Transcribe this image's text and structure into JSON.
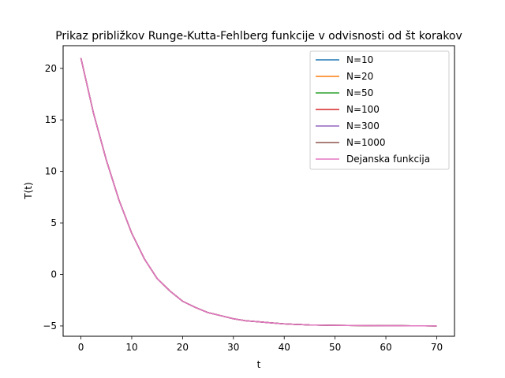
{
  "chart_data": {
    "type": "line",
    "title": "Prikaz približkov Runge-Kutta-Fehlberg funkcije v odvisnosti od št korakov",
    "xlabel": "t",
    "ylabel": "T(t)",
    "xlim": [
      -3.5,
      73.5
    ],
    "ylim": [
      -6.0,
      22.2
    ],
    "xticks": [
      0,
      10,
      20,
      30,
      40,
      50,
      60,
      70
    ],
    "yticks": [
      -5,
      0,
      5,
      10,
      15,
      20
    ],
    "grid": false,
    "legend_position": "top-right",
    "x": [
      0,
      2.5,
      5,
      7.5,
      10,
      12.5,
      15,
      17.5,
      20,
      22.5,
      25,
      27.5,
      30,
      32.5,
      35,
      37.5,
      40,
      42.5,
      45,
      47.5,
      50,
      52.5,
      55,
      57.5,
      60,
      62.5,
      65,
      67.5,
      70
    ],
    "series": [
      {
        "name": "N=10",
        "color": "#1f77b4",
        "values": [
          21.0,
          15.6,
          11.1,
          7.2,
          4.0,
          1.5,
          -0.4,
          -1.6,
          -2.6,
          -3.2,
          -3.7,
          -4.0,
          -4.3,
          -4.5,
          -4.6,
          -4.7,
          -4.8,
          -4.85,
          -4.9,
          -4.92,
          -4.94,
          -4.95,
          -4.96,
          -4.97,
          -4.98,
          -4.98,
          -4.99,
          -4.99,
          -5.0
        ]
      },
      {
        "name": "N=20",
        "color": "#ff7f0e",
        "values": [
          21.0,
          15.6,
          11.1,
          7.2,
          4.0,
          1.5,
          -0.4,
          -1.6,
          -2.6,
          -3.2,
          -3.7,
          -4.0,
          -4.3,
          -4.5,
          -4.6,
          -4.7,
          -4.8,
          -4.85,
          -4.9,
          -4.92,
          -4.94,
          -4.95,
          -4.96,
          -4.97,
          -4.98,
          -4.98,
          -4.99,
          -4.99,
          -5.0
        ]
      },
      {
        "name": "N=50",
        "color": "#2ca02c",
        "values": [
          21.0,
          15.6,
          11.1,
          7.2,
          4.0,
          1.5,
          -0.4,
          -1.6,
          -2.6,
          -3.2,
          -3.7,
          -4.0,
          -4.3,
          -4.5,
          -4.6,
          -4.7,
          -4.8,
          -4.85,
          -4.9,
          -4.92,
          -4.94,
          -4.95,
          -4.96,
          -4.97,
          -4.98,
          -4.98,
          -4.99,
          -4.99,
          -5.0
        ]
      },
      {
        "name": "N=100",
        "color": "#d62728",
        "values": [
          21.0,
          15.6,
          11.1,
          7.2,
          4.0,
          1.5,
          -0.4,
          -1.6,
          -2.6,
          -3.2,
          -3.7,
          -4.0,
          -4.3,
          -4.5,
          -4.6,
          -4.7,
          -4.8,
          -4.85,
          -4.9,
          -4.92,
          -4.94,
          -4.95,
          -4.96,
          -4.97,
          -4.98,
          -4.98,
          -4.99,
          -4.99,
          -5.0
        ]
      },
      {
        "name": "N=300",
        "color": "#9467bd",
        "values": [
          21.0,
          15.6,
          11.1,
          7.2,
          4.0,
          1.5,
          -0.4,
          -1.6,
          -2.6,
          -3.2,
          -3.7,
          -4.0,
          -4.3,
          -4.5,
          -4.6,
          -4.7,
          -4.8,
          -4.85,
          -4.9,
          -4.92,
          -4.94,
          -4.95,
          -4.96,
          -4.97,
          -4.98,
          -4.98,
          -4.99,
          -4.99,
          -5.0
        ]
      },
      {
        "name": "N=1000",
        "color": "#8c564b",
        "values": [
          21.0,
          15.6,
          11.1,
          7.2,
          4.0,
          1.5,
          -0.4,
          -1.6,
          -2.6,
          -3.2,
          -3.7,
          -4.0,
          -4.3,
          -4.5,
          -4.6,
          -4.7,
          -4.8,
          -4.85,
          -4.9,
          -4.92,
          -4.94,
          -4.95,
          -4.96,
          -4.97,
          -4.98,
          -4.98,
          -4.99,
          -4.99,
          -5.0
        ]
      },
      {
        "name": "Dejanska funkcija",
        "color": "#e377c2",
        "values": [
          21.0,
          15.6,
          11.1,
          7.2,
          4.0,
          1.5,
          -0.4,
          -1.6,
          -2.6,
          -3.2,
          -3.7,
          -4.0,
          -4.3,
          -4.5,
          -4.6,
          -4.7,
          -4.8,
          -4.85,
          -4.9,
          -4.92,
          -4.94,
          -4.95,
          -4.96,
          -4.97,
          -4.98,
          -4.98,
          -4.99,
          -4.99,
          -5.0
        ]
      }
    ]
  }
}
